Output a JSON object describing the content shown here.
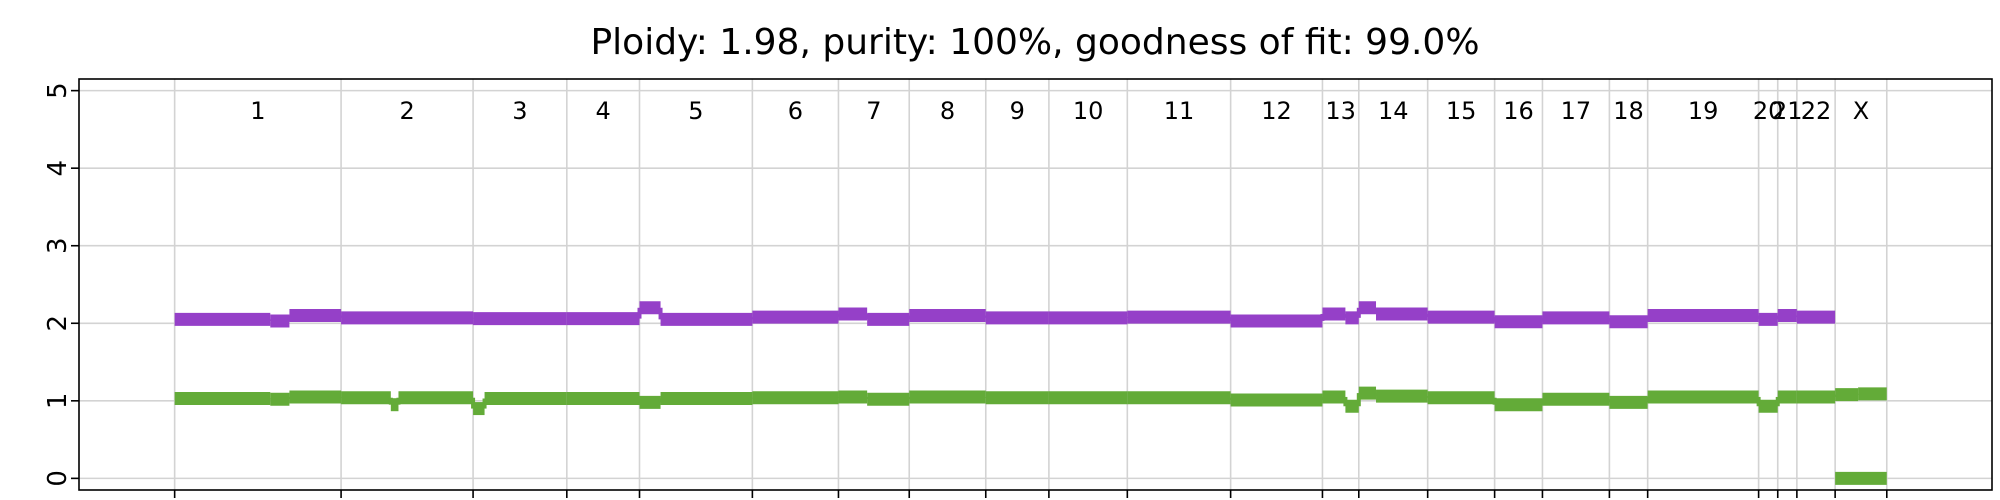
{
  "chart_data": {
    "type": "line",
    "title": "Ploidy: 1.98, purity: 100%, goodness of fit: 99.0%",
    "xlabel": "",
    "ylabel": "",
    "ylim": [
      -0.15,
      5.15
    ],
    "xlim": [
      -5,
      95
    ],
    "yticks": [
      "0",
      "1",
      "2",
      "3",
      "4",
      "5"
    ],
    "grid": true,
    "colors": {
      "total": "#9540c8",
      "minor": "#63ab38",
      "grid": "#d3d3d3"
    },
    "chromosomes": [
      {
        "label": "1",
        "start": 0.0,
        "end": 8.7
      },
      {
        "label": "2",
        "start": 8.7,
        "end": 15.6
      },
      {
        "label": "3",
        "start": 15.6,
        "end": 20.5
      },
      {
        "label": "4",
        "start": 20.5,
        "end": 24.3
      },
      {
        "label": "5",
        "start": 24.3,
        "end": 30.2
      },
      {
        "label": "6",
        "start": 30.2,
        "end": 34.7
      },
      {
        "label": "7",
        "start": 34.7,
        "end": 38.4
      },
      {
        "label": "8",
        "start": 38.4,
        "end": 42.4
      },
      {
        "label": "9",
        "start": 42.4,
        "end": 45.7
      },
      {
        "label": "10",
        "start": 45.7,
        "end": 49.8
      },
      {
        "label": "11",
        "start": 49.8,
        "end": 55.2
      },
      {
        "label": "12",
        "start": 55.2,
        "end": 60.0
      },
      {
        "label": "13",
        "start": 60.0,
        "end": 61.9
      },
      {
        "label": "14",
        "start": 61.9,
        "end": 65.5
      },
      {
        "label": "15",
        "start": 65.5,
        "end": 69.0
      },
      {
        "label": "16",
        "start": 69.0,
        "end": 71.5
      },
      {
        "label": "17",
        "start": 71.5,
        "end": 75.0
      },
      {
        "label": "18",
        "start": 75.0,
        "end": 77.0
      },
      {
        "label": "19",
        "start": 77.0,
        "end": 82.8
      },
      {
        "label": "20",
        "start": 82.8,
        "end": 83.8
      },
      {
        "label": "21",
        "start": 83.8,
        "end": 84.8
      },
      {
        "label": "22",
        "start": 84.8,
        "end": 86.8
      },
      {
        "label": "X",
        "start": 86.8,
        "end": 89.5
      }
    ],
    "series": [
      {
        "color": "#9540c8",
        "segments": [
          [
            0.0,
            5.0,
            2.05
          ],
          [
            5.0,
            6.0,
            2.03
          ],
          [
            6.0,
            8.7,
            2.1
          ],
          [
            8.7,
            15.6,
            2.07
          ],
          [
            15.6,
            20.5,
            2.06
          ],
          [
            20.5,
            24.3,
            2.06
          ],
          [
            24.3,
            25.4,
            2.2
          ],
          [
            25.4,
            30.2,
            2.05
          ],
          [
            30.2,
            34.7,
            2.08
          ],
          [
            34.7,
            36.2,
            2.12
          ],
          [
            36.2,
            38.4,
            2.05
          ],
          [
            38.4,
            42.4,
            2.1
          ],
          [
            42.4,
            45.7,
            2.07
          ],
          [
            45.7,
            49.8,
            2.07
          ],
          [
            49.8,
            55.2,
            2.08
          ],
          [
            55.2,
            60.0,
            2.03
          ],
          [
            60.0,
            61.2,
            2.12
          ],
          [
            61.2,
            61.9,
            2.07
          ],
          [
            61.9,
            62.8,
            2.2
          ],
          [
            62.8,
            65.5,
            2.12
          ],
          [
            65.5,
            69.0,
            2.08
          ],
          [
            69.0,
            71.5,
            2.02
          ],
          [
            71.5,
            75.0,
            2.07
          ],
          [
            75.0,
            77.0,
            2.02
          ],
          [
            77.0,
            82.8,
            2.1
          ],
          [
            82.8,
            83.8,
            2.05
          ],
          [
            83.8,
            84.8,
            2.1
          ],
          [
            84.8,
            86.8,
            2.08
          ]
        ]
      },
      {
        "color": "#63ab38",
        "segments": [
          [
            0.0,
            5.0,
            1.03
          ],
          [
            5.0,
            6.0,
            1.02
          ],
          [
            6.0,
            8.7,
            1.05
          ],
          [
            8.7,
            11.3,
            1.04
          ],
          [
            11.3,
            11.7,
            0.95
          ],
          [
            11.7,
            15.6,
            1.04
          ],
          [
            15.6,
            16.2,
            0.9
          ],
          [
            16.2,
            20.5,
            1.03
          ],
          [
            20.5,
            24.3,
            1.03
          ],
          [
            24.3,
            25.4,
            0.98
          ],
          [
            25.4,
            30.2,
            1.03
          ],
          [
            30.2,
            34.7,
            1.04
          ],
          [
            34.7,
            36.2,
            1.05
          ],
          [
            36.2,
            38.4,
            1.02
          ],
          [
            38.4,
            42.4,
            1.05
          ],
          [
            42.4,
            45.7,
            1.04
          ],
          [
            45.7,
            49.8,
            1.04
          ],
          [
            49.8,
            55.2,
            1.04
          ],
          [
            55.2,
            60.0,
            1.01
          ],
          [
            60.0,
            61.2,
            1.05
          ],
          [
            61.2,
            61.9,
            0.93
          ],
          [
            61.9,
            62.8,
            1.1
          ],
          [
            62.8,
            65.5,
            1.06
          ],
          [
            65.5,
            69.0,
            1.04
          ],
          [
            69.0,
            71.5,
            0.95
          ],
          [
            71.5,
            75.0,
            1.02
          ],
          [
            75.0,
            77.0,
            0.98
          ],
          [
            77.0,
            82.8,
            1.05
          ],
          [
            82.8,
            83.8,
            0.93
          ],
          [
            83.8,
            84.8,
            1.05
          ],
          [
            84.8,
            86.8,
            1.05
          ],
          [
            86.8,
            88.0,
            1.08
          ],
          [
            88.0,
            89.5,
            1.09
          ]
        ]
      },
      {
        "color": "#63ab38",
        "segments": [
          [
            86.8,
            89.5,
            0.0
          ]
        ]
      }
    ]
  }
}
